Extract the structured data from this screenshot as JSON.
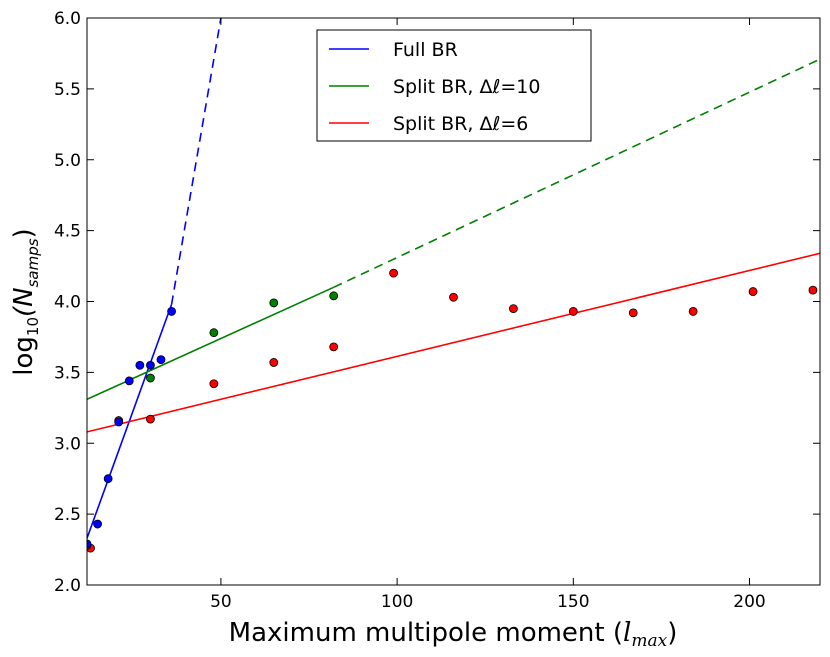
{
  "chart_data": {
    "type": "scatter",
    "xlabel_text": "Maximum multipole moment (",
    "xlabel_var": "l",
    "xlabel_sub": "max",
    "xlabel_close": ")",
    "ylabel_prefix": "log",
    "ylabel_base": "10",
    "ylabel_var": "(N",
    "ylabel_sub": "samps",
    "ylabel_close": ")",
    "xlim": [
      12,
      220
    ],
    "ylim": [
      2.0,
      6.0
    ],
    "xticks": [
      50,
      100,
      150,
      200
    ],
    "xtick_labels": [
      "50",
      "100",
      "150",
      "200"
    ],
    "yticks": [
      2.0,
      2.5,
      3.0,
      3.5,
      4.0,
      4.5,
      5.0,
      5.5,
      6.0
    ],
    "ytick_labels": [
      "2.0",
      "2.5",
      "3.0",
      "3.5",
      "4.0",
      "4.5",
      "5.0",
      "5.5",
      "6.0"
    ],
    "legend_position": "top-center",
    "series": [
      {
        "name": "Full BR",
        "color": "#0000ff",
        "points": [
          [
            12,
            2.29
          ],
          [
            15,
            2.43
          ],
          [
            18,
            2.75
          ],
          [
            21,
            3.15
          ],
          [
            24,
            3.44
          ],
          [
            27,
            3.55
          ],
          [
            30,
            3.55
          ],
          [
            33,
            3.59
          ],
          [
            36,
            3.93
          ]
        ],
        "fit_solid": [
          [
            12,
            2.33
          ],
          [
            36,
            3.98
          ]
        ],
        "fit_dashed": [
          [
            36,
            3.98
          ],
          [
            50,
            6.0
          ]
        ]
      },
      {
        "name": "Split BR, Δℓ=10",
        "color": "#008000",
        "points": [
          [
            12,
            2.28
          ],
          [
            30,
            3.46
          ],
          [
            48,
            3.78
          ],
          [
            65,
            3.99
          ],
          [
            82,
            4.04
          ]
        ],
        "fit_solid": [
          [
            12,
            3.31
          ],
          [
            82,
            4.1
          ]
        ],
        "fit_dashed": [
          [
            82,
            4.1
          ],
          [
            220,
            5.71
          ]
        ]
      },
      {
        "name": "Split BR, Δℓ=6",
        "color": "#ff0000",
        "points": [
          [
            13,
            2.26
          ],
          [
            21,
            3.16
          ],
          [
            30,
            3.17
          ],
          [
            48,
            3.42
          ],
          [
            65,
            3.57
          ],
          [
            82,
            3.68
          ],
          [
            99,
            4.2
          ],
          [
            116,
            4.03
          ],
          [
            133,
            3.95
          ],
          [
            150,
            3.93
          ],
          [
            167,
            3.92
          ],
          [
            184,
            3.93
          ],
          [
            201,
            4.07
          ],
          [
            218,
            4.08
          ]
        ],
        "fit_solid": [
          [
            12,
            3.08
          ],
          [
            220,
            4.34
          ]
        ],
        "fit_dashed": []
      }
    ]
  }
}
